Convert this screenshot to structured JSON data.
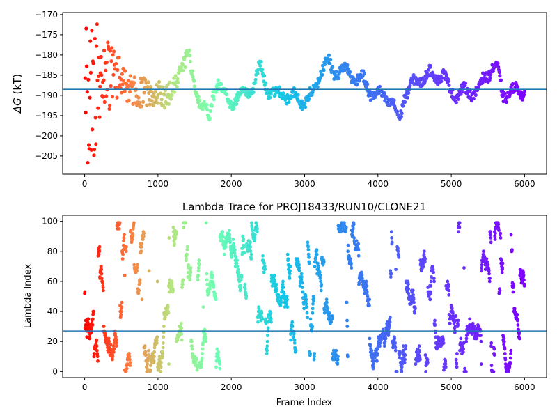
{
  "chart_data": [
    {
      "type": "scatter",
      "title": "",
      "xlabel": "",
      "ylabel": "ΔG (kT)",
      "ylabel_symbol": "ΔG",
      "ylabel_unit": "(kT)",
      "xlim": [
        -300,
        6300
      ],
      "ylim": [
        -209.5,
        -169.5
      ],
      "x_ticks": [
        0,
        1000,
        2000,
        3000,
        4000,
        5000,
        6000
      ],
      "y_ticks": [
        -170,
        -175,
        -180,
        -185,
        -190,
        -195,
        -200,
        -205
      ],
      "x_tick_labels": [
        "0",
        "1000",
        "2000",
        "3000",
        "4000",
        "5000",
        "6000"
      ],
      "y_tick_labels": [
        "−170",
        "−175",
        "−180",
        "−185",
        "−190",
        "−195",
        "−200",
        "−205"
      ],
      "hline": -188.5,
      "hline_color": "#1f77b4",
      "colormap": "rainbow_r (red at frame 0 → violet at frame 6000)",
      "grid": false,
      "trace_keyframes": [
        [
          0,
          -192
        ],
        [
          150,
          -188
        ],
        [
          300,
          -186
        ],
        [
          450,
          -185
        ],
        [
          600,
          -188
        ],
        [
          750,
          -189
        ],
        [
          900,
          -190
        ],
        [
          1000,
          -189
        ],
        [
          1100,
          -191
        ],
        [
          1200,
          -188
        ],
        [
          1300,
          -184
        ],
        [
          1380,
          -181
        ],
        [
          1420,
          -179
        ],
        [
          1500,
          -189
        ],
        [
          1580,
          -191
        ],
        [
          1650,
          -193
        ],
        [
          1700,
          -197
        ],
        [
          1750,
          -190
        ],
        [
          1820,
          -186
        ],
        [
          1900,
          -190
        ],
        [
          2000,
          -192
        ],
        [
          2100,
          -190
        ],
        [
          2200,
          -189
        ],
        [
          2300,
          -188
        ],
        [
          2380,
          -183
        ],
        [
          2420,
          -184
        ],
        [
          2500,
          -189
        ],
        [
          2600,
          -190
        ],
        [
          2700,
          -189
        ],
        [
          2800,
          -191
        ],
        [
          2900,
          -190
        ],
        [
          3000,
          -192
        ],
        [
          3100,
          -190
        ],
        [
          3200,
          -185
        ],
        [
          3300,
          -181.5
        ],
        [
          3400,
          -184
        ],
        [
          3600,
          -184
        ],
        [
          3700,
          -186
        ],
        [
          3800,
          -186
        ],
        [
          3900,
          -189
        ],
        [
          3950,
          -190
        ],
        [
          4100,
          -190
        ],
        [
          4200,
          -192
        ],
        [
          4250,
          -195
        ],
        [
          4300,
          -196
        ],
        [
          4350,
          -190
        ],
        [
          4450,
          -188
        ],
        [
          4550,
          -186
        ],
        [
          4700,
          -185
        ],
        [
          4900,
          -185
        ],
        [
          4950,
          -188
        ],
        [
          5050,
          -189.5
        ],
        [
          5250,
          -189
        ],
        [
          5350,
          -189
        ],
        [
          5450,
          -186
        ],
        [
          5550,
          -183
        ],
        [
          5620,
          -183
        ],
        [
          5700,
          -190
        ],
        [
          5800,
          -189
        ],
        [
          6000,
          -189
        ]
      ]
    },
    {
      "type": "scatter",
      "title": "Lambda Trace for PROJ18433/RUN10/CLONE21",
      "xlabel": "Frame Index",
      "ylabel": "Lambda Index",
      "xlim": [
        -300,
        6300
      ],
      "ylim": [
        -4,
        104
      ],
      "x_ticks": [
        0,
        1000,
        2000,
        3000,
        4000,
        5000,
        6000
      ],
      "y_ticks": [
        0,
        20,
        40,
        60,
        80,
        100
      ],
      "x_tick_labels": [
        "0",
        "1000",
        "2000",
        "3000",
        "4000",
        "5000",
        "6000"
      ],
      "y_tick_labels": [
        "0",
        "20",
        "40",
        "60",
        "80",
        "100"
      ],
      "hline": 27,
      "hline_color": "#1f77b4",
      "colormap": "rainbow_r (red at frame 0 → violet at frame 6000)",
      "grid": false
    }
  ]
}
